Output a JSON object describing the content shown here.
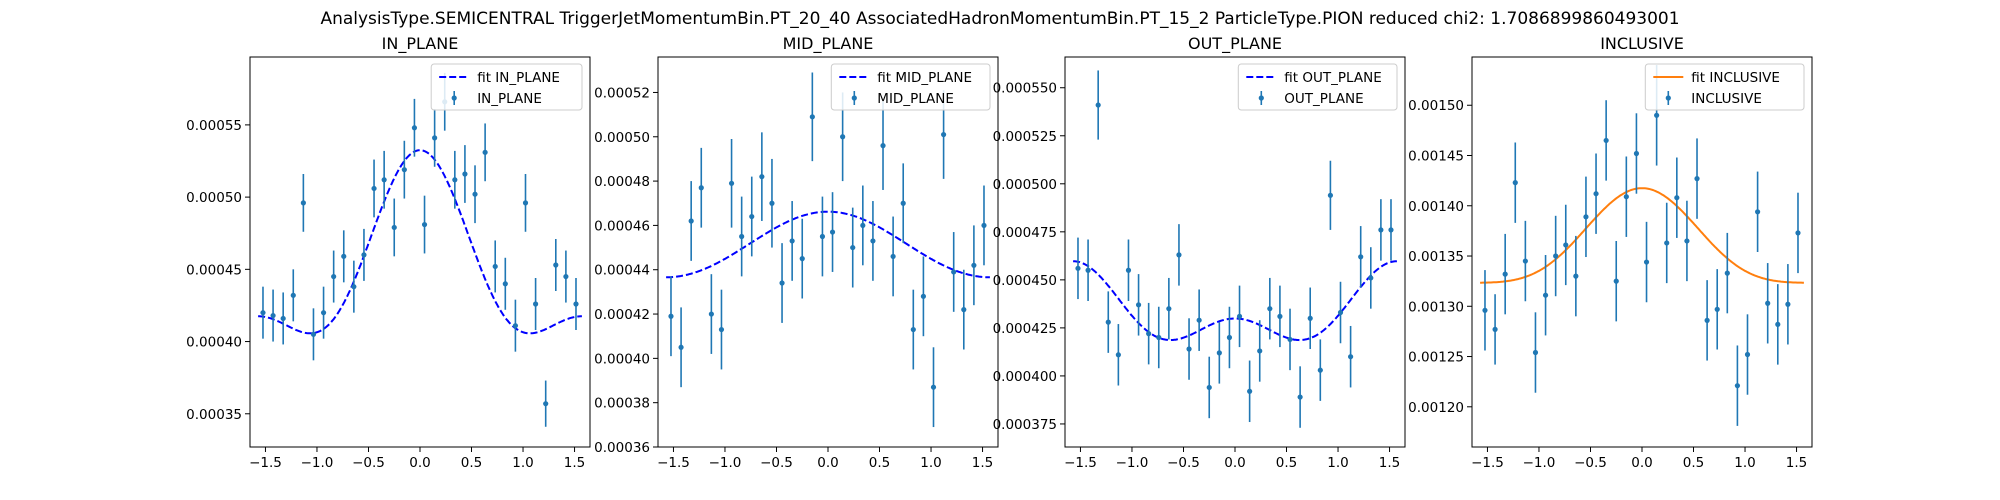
{
  "figure": {
    "suptitle": "AnalysisType.SEMICENTRAL TriggerJetMomentumBin.PT_20_40 AssociatedHadronMomentumBin.PT_15_2 ParticleType.PION reduced chi2: 1.7086899860493001"
  },
  "chart_data": [
    {
      "type": "scatter",
      "title": "IN_PLANE",
      "xlabel": "",
      "ylabel": "",
      "xlim": [
        -1.65,
        1.65
      ],
      "ylim": [
        0.000327,
        0.000597
      ],
      "xticks": [
        -1.5,
        -1.0,
        -0.5,
        0.0,
        0.5,
        1.0,
        1.5
      ],
      "xtick_labels": [
        "−1.5",
        "−1.0",
        "−0.5",
        "0.0",
        "0.5",
        "1.0",
        "1.5"
      ],
      "yticks": [
        0.00035,
        0.0004,
        0.00045,
        0.0005,
        0.00055
      ],
      "ytick_labels": [
        "0.00035",
        "0.00040",
        "0.00045",
        "0.00050",
        "0.00055"
      ],
      "legend_position": "upper right",
      "fit": {
        "label": "fit IN_PLANE",
        "color": "#0000ff",
        "style": "dashed",
        "model": {
          "b": 0.000448,
          "a1": 0.0,
          "a2": 5.75e-05,
          "a4": 2.7e-05
        }
      },
      "series": {
        "label": "IN_PLANE",
        "color": "#1f77b4",
        "x": [
          -1.524,
          -1.426,
          -1.328,
          -1.23,
          -1.132,
          -1.034,
          -0.936,
          -0.838,
          -0.74,
          -0.642,
          -0.544,
          -0.446,
          -0.348,
          -0.25,
          -0.152,
          -0.054,
          0.044,
          0.142,
          0.24,
          0.338,
          0.436,
          0.534,
          0.632,
          0.73,
          0.828,
          0.926,
          1.024,
          1.122,
          1.22,
          1.318,
          1.416,
          1.514
        ],
        "y": [
          0.00042,
          0.000418,
          0.000416,
          0.000432,
          0.000496,
          0.000405,
          0.00042,
          0.000445,
          0.000459,
          0.000438,
          0.00046,
          0.000506,
          0.000512,
          0.000479,
          0.000519,
          0.000548,
          0.000481,
          0.000541,
          0.000566,
          0.000512,
          0.000516,
          0.000502,
          0.000531,
          0.000452,
          0.00044,
          0.000411,
          0.000496,
          0.000426,
          0.000357,
          0.000453,
          0.000445,
          0.000426
        ],
        "err": [
          1.8e-05,
          1.8e-05,
          1.8e-05,
          1.8e-05,
          2e-05,
          1.8e-05,
          1.8e-05,
          1.8e-05,
          1.8e-05,
          1.8e-05,
          1.8e-05,
          2e-05,
          2e-05,
          2e-05,
          2e-05,
          2e-05,
          2e-05,
          2e-05,
          2e-05,
          2e-05,
          2e-05,
          2e-05,
          2e-05,
          1.8e-05,
          1.8e-05,
          1.8e-05,
          2e-05,
          1.8e-05,
          1.6e-05,
          1.8e-05,
          1.8e-05,
          1.8e-05
        ]
      }
    },
    {
      "type": "scatter",
      "title": "MID_PLANE",
      "xlabel": "",
      "ylabel": "",
      "xlim": [
        -1.65,
        1.65
      ],
      "ylim": [
        0.00036,
        0.000536
      ],
      "xticks": [
        -1.5,
        -1.0,
        -0.5,
        0.0,
        0.5,
        1.0,
        1.5
      ],
      "xtick_labels": [
        "−1.5",
        "−1.0",
        "−0.5",
        "0.0",
        "0.5",
        "1.0",
        "1.5"
      ],
      "yticks": [
        0.00036,
        0.00038,
        0.0004,
        0.00042,
        0.00044,
        0.00046,
        0.00048,
        0.0005,
        0.00052
      ],
      "ytick_labels": [
        "0.00036",
        "0.00038",
        "0.00040",
        "0.00042",
        "0.00044",
        "0.00046",
        "0.00048",
        "0.00050",
        "0.00052"
      ],
      "legend_position": "upper right",
      "fit": {
        "label": "fit MID_PLANE",
        "color": "#0000ff",
        "style": "dashed",
        "model": {
          "b": 0.0004512,
          "a1": 0.0,
          "a2": 1.48e-05,
          "a4": 2e-07
        }
      },
      "series": {
        "label": "MID_PLANE",
        "color": "#1f77b4",
        "x": [
          -1.524,
          -1.426,
          -1.328,
          -1.23,
          -1.132,
          -1.034,
          -0.936,
          -0.838,
          -0.74,
          -0.642,
          -0.544,
          -0.446,
          -0.348,
          -0.25,
          -0.152,
          -0.054,
          0.044,
          0.142,
          0.24,
          0.338,
          0.436,
          0.534,
          0.632,
          0.73,
          0.828,
          0.926,
          1.024,
          1.122,
          1.22,
          1.318,
          1.416,
          1.514
        ],
        "y": [
          0.000419,
          0.000405,
          0.000462,
          0.000477,
          0.00042,
          0.000413,
          0.000479,
          0.000455,
          0.000464,
          0.000482,
          0.00047,
          0.000434,
          0.000453,
          0.000445,
          0.000509,
          0.000455,
          0.000457,
          0.0005,
          0.00045,
          0.00046,
          0.000453,
          0.000496,
          0.000446,
          0.00047,
          0.000413,
          0.000428,
          0.000387,
          0.000501,
          0.000439,
          0.000422,
          0.000442,
          0.00046
        ],
        "err": [
          1.8e-05,
          1.8e-05,
          1.8e-05,
          1.8e-05,
          1.8e-05,
          1.8e-05,
          2e-05,
          1.8e-05,
          1.8e-05,
          2e-05,
          2e-05,
          1.8e-05,
          1.8e-05,
          1.8e-05,
          2e-05,
          1.8e-05,
          1.8e-05,
          2e-05,
          1.8e-05,
          1.8e-05,
          1.8e-05,
          2e-05,
          1.8e-05,
          1.8e-05,
          1.8e-05,
          1.8e-05,
          1.8e-05,
          2e-05,
          1.8e-05,
          1.8e-05,
          1.8e-05,
          1.8e-05
        ]
      }
    },
    {
      "type": "scatter",
      "title": "OUT_PLANE",
      "xlabel": "",
      "ylabel": "",
      "xlim": [
        -1.65,
        1.65
      ],
      "ylim": [
        0.000363,
        0.000566
      ],
      "xticks": [
        -1.5,
        -1.0,
        -0.5,
        0.0,
        0.5,
        1.0,
        1.5
      ],
      "xtick_labels": [
        "−1.5",
        "−1.0",
        "−0.5",
        "0.0",
        "0.5",
        "1.0",
        "1.5"
      ],
      "yticks": [
        0.000375,
        0.0004,
        0.000425,
        0.00045,
        0.000475,
        0.0005,
        0.000525,
        0.00055
      ],
      "ytick_labels": [
        "0.000375",
        "0.000400",
        "0.000425",
        "0.000450",
        "0.000475",
        "0.000500",
        "0.000525",
        "0.000550"
      ],
      "legend_position": "upper right",
      "fit": {
        "label": "fit OUT_PLANE",
        "color": "#0000ff",
        "style": "dashed",
        "model": {
          "b": 0.0004329,
          "a1": 0.0,
          "a2": -1.49e-05,
          "a4": 1.19e-05
        }
      },
      "series": {
        "label": "OUT_PLANE",
        "color": "#1f77b4",
        "x": [
          -1.524,
          -1.426,
          -1.328,
          -1.23,
          -1.132,
          -1.034,
          -0.936,
          -0.838,
          -0.74,
          -0.642,
          -0.544,
          -0.446,
          -0.348,
          -0.25,
          -0.152,
          -0.054,
          0.044,
          0.142,
          0.24,
          0.338,
          0.436,
          0.534,
          0.632,
          0.73,
          0.828,
          0.926,
          1.024,
          1.122,
          1.22,
          1.318,
          1.416,
          1.514
        ],
        "y": [
          0.000456,
          0.000455,
          0.000541,
          0.000428,
          0.000411,
          0.000455,
          0.000437,
          0.000422,
          0.00042,
          0.000435,
          0.000463,
          0.000414,
          0.000429,
          0.000394,
          0.000412,
          0.00042,
          0.000431,
          0.000392,
          0.000413,
          0.000435,
          0.000431,
          0.000419,
          0.000389,
          0.00043,
          0.000403,
          0.000494,
          0.000433,
          0.00041,
          0.000462,
          0.000451,
          0.000476,
          0.000476
        ],
        "err": [
          1.6e-05,
          1.6e-05,
          1.8e-05,
          1.6e-05,
          1.6e-05,
          1.6e-05,
          1.6e-05,
          1.6e-05,
          1.6e-05,
          1.6e-05,
          1.6e-05,
          1.6e-05,
          1.6e-05,
          1.6e-05,
          1.6e-05,
          1.6e-05,
          1.6e-05,
          1.6e-05,
          1.6e-05,
          1.6e-05,
          1.6e-05,
          1.6e-05,
          1.6e-05,
          1.6e-05,
          1.6e-05,
          1.8e-05,
          1.6e-05,
          1.6e-05,
          1.6e-05,
          1.6e-05,
          1.6e-05,
          1.6e-05
        ]
      }
    },
    {
      "type": "scatter",
      "title": "INCLUSIVE",
      "xlabel": "",
      "ylabel": "",
      "xlim": [
        -1.65,
        1.65
      ],
      "ylim": [
        0.00116,
        0.001548
      ],
      "xticks": [
        -1.5,
        -1.0,
        -0.5,
        0.0,
        0.5,
        1.0,
        1.5
      ],
      "xtick_labels": [
        "−1.5",
        "−1.0",
        "−0.5",
        "0.0",
        "0.5",
        "1.0",
        "1.5"
      ],
      "yticks": [
        0.0012,
        0.00125,
        0.0013,
        0.00135,
        0.0014,
        0.00145,
        0.0015
      ],
      "ytick_labels": [
        "0.00120",
        "0.00125",
        "0.00130",
        "0.00135",
        "0.00140",
        "0.00145",
        "0.00150"
      ],
      "legend_position": "upper right",
      "fit": {
        "label": "fit INCLUSIVE",
        "color": "#ff7f0e",
        "style": "solid",
        "model": {
          "b": 0.001361,
          "a1": 0.0,
          "a2": 4.7e-05,
          "a4": 9.5e-06
        }
      },
      "series": {
        "label": "INCLUSIVE",
        "color": "#1f77b4",
        "x": [
          -1.524,
          -1.426,
          -1.328,
          -1.23,
          -1.132,
          -1.034,
          -0.936,
          -0.838,
          -0.74,
          -0.642,
          -0.544,
          -0.446,
          -0.348,
          -0.25,
          -0.152,
          -0.054,
          0.044,
          0.142,
          0.24,
          0.338,
          0.436,
          0.534,
          0.632,
          0.73,
          0.828,
          0.926,
          1.024,
          1.122,
          1.22,
          1.318,
          1.416,
          1.514
        ],
        "y": [
          0.001296,
          0.001277,
          0.001332,
          0.001423,
          0.001345,
          0.001254,
          0.001311,
          0.00135,
          0.001361,
          0.00133,
          0.001389,
          0.001412,
          0.001465,
          0.001325,
          0.001409,
          0.001452,
          0.001344,
          0.00149,
          0.001363,
          0.001408,
          0.001365,
          0.001427,
          0.001286,
          0.001297,
          0.001333,
          0.001221,
          0.001252,
          0.001394,
          0.001303,
          0.001282,
          0.001302,
          0.001373
        ],
        "err": [
          4e-05,
          3.5e-05,
          4e-05,
          4e-05,
          4e-05,
          4e-05,
          4e-05,
          4e-05,
          4e-05,
          4e-05,
          4e-05,
          4e-05,
          4e-05,
          4e-05,
          4e-05,
          4e-05,
          4e-05,
          5e-05,
          4e-05,
          4e-05,
          4e-05,
          4e-05,
          4e-05,
          4e-05,
          4e-05,
          4e-05,
          4e-05,
          4e-05,
          4e-05,
          4e-05,
          4e-05,
          4e-05
        ]
      }
    }
  ]
}
